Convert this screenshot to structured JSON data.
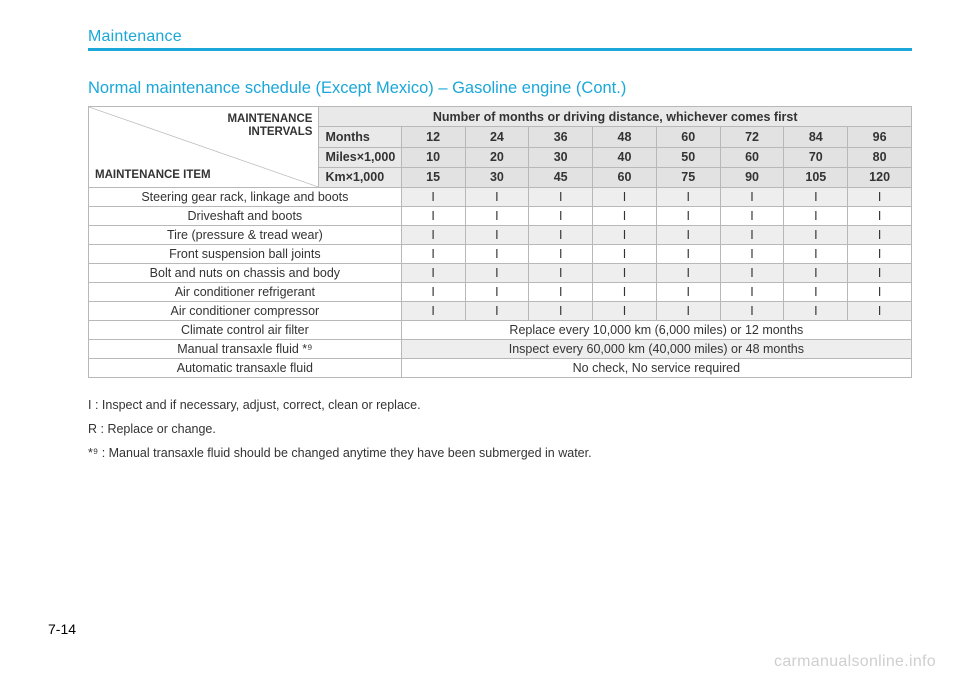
{
  "chapter_title": "Maintenance",
  "section_title": "Normal maintenance schedule (Except Mexico) – Gasoline engine  (Cont.)",
  "page_number": "7-14",
  "watermark": "carmanualsonline.info",
  "table": {
    "diag_top": "MAINTENANCE\nINTERVALS",
    "diag_bottom": "MAINTENANCE ITEM",
    "header_note": "Number of months or driving distance, whichever comes first",
    "interval_rows": [
      {
        "label": "Months",
        "values": [
          "12",
          "24",
          "36",
          "48",
          "60",
          "72",
          "84",
          "96"
        ]
      },
      {
        "label": "Miles×1,000",
        "values": [
          "10",
          "20",
          "30",
          "40",
          "50",
          "60",
          "70",
          "80"
        ]
      },
      {
        "label": "Km×1,000",
        "values": [
          "15",
          "30",
          "45",
          "60",
          "75",
          "90",
          "105",
          "120"
        ]
      }
    ],
    "items": [
      {
        "name": "Steering gear rack, linkage and boots",
        "cells": [
          "I",
          "I",
          "I",
          "I",
          "I",
          "I",
          "I",
          "I"
        ]
      },
      {
        "name": "Driveshaft and boots",
        "cells": [
          "I",
          "I",
          "I",
          "I",
          "I",
          "I",
          "I",
          "I"
        ]
      },
      {
        "name": "Tire (pressure & tread wear)",
        "cells": [
          "I",
          "I",
          "I",
          "I",
          "I",
          "I",
          "I",
          "I"
        ]
      },
      {
        "name": "Front suspension ball joints",
        "cells": [
          "I",
          "I",
          "I",
          "I",
          "I",
          "I",
          "I",
          "I"
        ]
      },
      {
        "name": "Bolt and nuts on chassis and body",
        "cells": [
          "I",
          "I",
          "I",
          "I",
          "I",
          "I",
          "I",
          "I"
        ]
      },
      {
        "name": "Air conditioner refrigerant",
        "cells": [
          "I",
          "I",
          "I",
          "I",
          "I",
          "I",
          "I",
          "I"
        ]
      },
      {
        "name": "Air conditioner compressor",
        "cells": [
          "I",
          "I",
          "I",
          "I",
          "I",
          "I",
          "I",
          "I"
        ]
      },
      {
        "name": "Climate control air filter",
        "full": "Replace every 10,000 km (6,000 miles) or 12 months"
      },
      {
        "name": "Manual transaxle fluid *⁹",
        "full": "Inspect every 60,000 km (40,000 miles) or 48 months"
      },
      {
        "name": "Automatic transaxle fluid",
        "full": "No check, No service required"
      }
    ]
  },
  "legend": {
    "i": "I  : Inspect and if necessary, adjust, correct, clean or replace.",
    "r": "R : Replace or change.",
    "star9": "*⁹ : Manual transaxle fluid should be changed anytime they have been submerged in water."
  },
  "colors": {
    "accent": "#1ba7d9",
    "border": "#b8b8b8",
    "shade1": "#e9e9e9",
    "shade2": "#e2e2e2",
    "row_alt": "#eeeeee",
    "watermark": "#cfcfcf"
  },
  "layout": {
    "item_col_width_pct": 28,
    "label_col_width_pct": 10,
    "value_col_width_pct": 7.75
  }
}
